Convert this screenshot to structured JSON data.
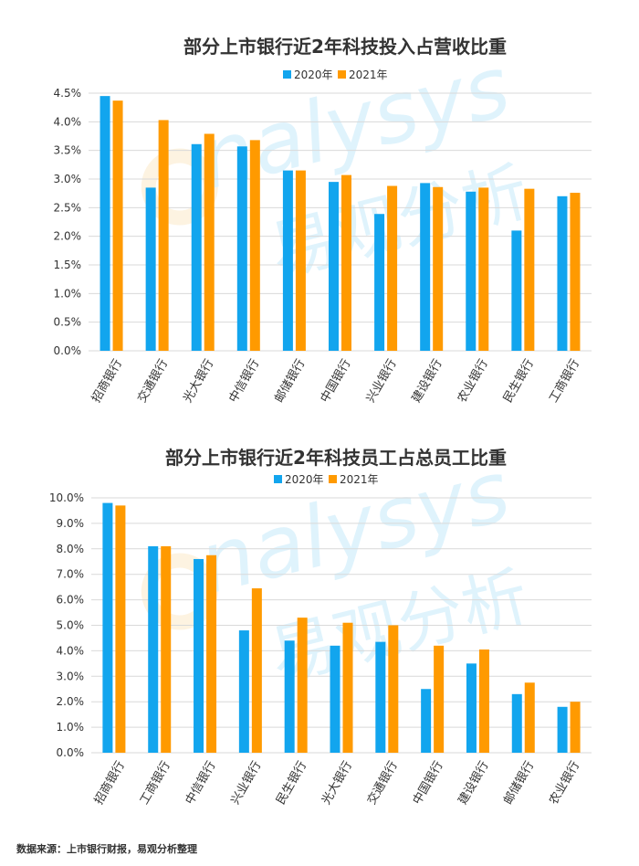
{
  "charts": [
    {
      "type": "bar",
      "title": "部分上市银行近2年科技投入占营收比重",
      "categories": [
        "招商银行",
        "交通银行",
        "光大银行",
        "中信银行",
        "邮储银行",
        "中国银行",
        "兴业银行",
        "建设银行",
        "农业银行",
        "民生银行",
        "工商银行"
      ],
      "series": [
        {
          "name": "2020年",
          "values": [
            4.45,
            2.85,
            3.61,
            3.57,
            3.15,
            2.95,
            2.39,
            2.93,
            2.78,
            2.1,
            2.7
          ]
        },
        {
          "name": "2021年",
          "values": [
            4.37,
            4.03,
            3.79,
            3.68,
            3.15,
            3.07,
            2.88,
            2.86,
            2.85,
            2.83,
            2.76
          ]
        }
      ],
      "ylim": [
        0,
        4.5
      ],
      "yticks": [
        0,
        0.5,
        1.0,
        1.5,
        2.0,
        2.5,
        3.0,
        3.5,
        4.0,
        4.5
      ],
      "ytick_labels": [
        "0.0%",
        "0.5%",
        "1.0%",
        "1.5%",
        "2.0%",
        "2.5%",
        "3.0%",
        "3.5%",
        "4.0%",
        "4.5%"
      ],
      "xlabel": "",
      "ylabel": "",
      "grid": true,
      "legend": "top-center"
    },
    {
      "type": "bar",
      "title": "部分上市银行近2年科技员工占总员工比重",
      "categories": [
        "招商银行",
        "工商银行",
        "中信银行",
        "兴业银行",
        "民生银行",
        "光大银行",
        "交通银行",
        "中国银行",
        "建设银行",
        "邮储银行",
        "农业银行"
      ],
      "series": [
        {
          "name": "2020年",
          "values": [
            9.8,
            8.1,
            7.6,
            4.8,
            4.4,
            4.2,
            4.35,
            2.5,
            3.5,
            2.3,
            1.8
          ]
        },
        {
          "name": "2021年",
          "values": [
            9.7,
            8.1,
            7.75,
            6.45,
            5.3,
            5.1,
            5.0,
            4.2,
            4.05,
            2.75,
            2.0
          ]
        }
      ],
      "ylim": [
        0,
        10
      ],
      "yticks": [
        0,
        1,
        2,
        3,
        4,
        5,
        6,
        7,
        8,
        9,
        10
      ],
      "ytick_labels": [
        "0.0%",
        "1.0%",
        "2.0%",
        "3.0%",
        "4.0%",
        "5.0%",
        "6.0%",
        "7.0%",
        "8.0%",
        "9.0%",
        "10.0%"
      ],
      "xlabel": "",
      "ylabel": "",
      "grid": true,
      "legend": "top-center"
    }
  ],
  "colors": {
    "series_2020": "#12a5ee",
    "series_2021": "#ff9a00",
    "grid": "#d9d9d9",
    "axis_text": "#333333",
    "title": "#333333"
  },
  "watermark": {
    "latin": "nalysys",
    "cjk": "易观分析"
  },
  "source_text": "数据来源：上市银行财报，易观分析整理"
}
